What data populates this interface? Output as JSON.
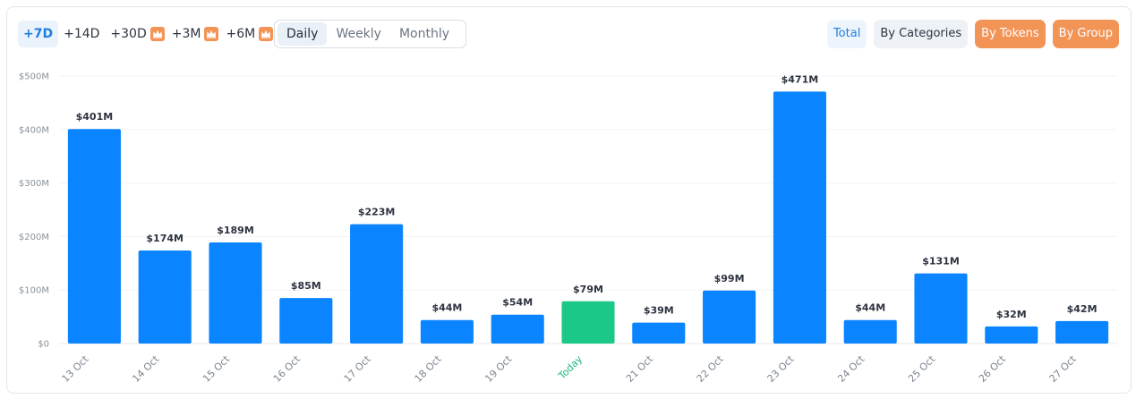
{
  "toolbar": {
    "ranges": [
      {
        "label": "+7D",
        "active": true,
        "premium": false
      },
      {
        "label": "+14D",
        "active": false,
        "premium": false
      },
      {
        "label": "+30D",
        "active": false,
        "premium": true
      },
      {
        "label": "+3M",
        "active": false,
        "premium": true
      },
      {
        "label": "+6M",
        "active": false,
        "premium": true
      }
    ],
    "periods": [
      {
        "label": "Daily",
        "active": true
      },
      {
        "label": "Weekly",
        "active": false
      },
      {
        "label": "Monthly",
        "active": false
      }
    ],
    "views": [
      {
        "label": "Total",
        "active": true,
        "premium": false
      },
      {
        "label": "By Categories",
        "active": false,
        "premium": false
      },
      {
        "label": "By Tokens",
        "active": false,
        "premium": true
      },
      {
        "label": "By Group",
        "active": false,
        "premium": true
      }
    ]
  },
  "colors": {
    "bar": "#0a84ff",
    "highlight_bar": "#1cc888",
    "highlight_label": "#1cb97a",
    "premium": "#f39457",
    "accent": "#1f7fe0"
  },
  "chart_data": {
    "type": "bar",
    "categories": [
      "13 Oct",
      "14 Oct",
      "15 Oct",
      "16 Oct",
      "17 Oct",
      "18 Oct",
      "19 Oct",
      "Today",
      "21 Oct",
      "22 Oct",
      "23 Oct",
      "24 Oct",
      "25 Oct",
      "26 Oct",
      "27 Oct"
    ],
    "values": [
      401,
      174,
      189,
      85,
      223,
      44,
      54,
      79,
      39,
      99,
      471,
      44,
      131,
      32,
      42
    ],
    "value_labels": [
      "$401M",
      "$174M",
      "$189M",
      "$85M",
      "$223M",
      "$44M",
      "$54M",
      "$79M",
      "$39M",
      "$99M",
      "$471M",
      "$44M",
      "$131M",
      "$32M",
      "$42M"
    ],
    "highlight_index": 7,
    "y_ticks": [
      0,
      100,
      200,
      300,
      400,
      500
    ],
    "y_tick_labels": [
      "$0",
      "$100M",
      "$200M",
      "$300M",
      "$400M",
      "$500M"
    ],
    "ylim": [
      0,
      500
    ],
    "grid": true,
    "legend": "none"
  }
}
